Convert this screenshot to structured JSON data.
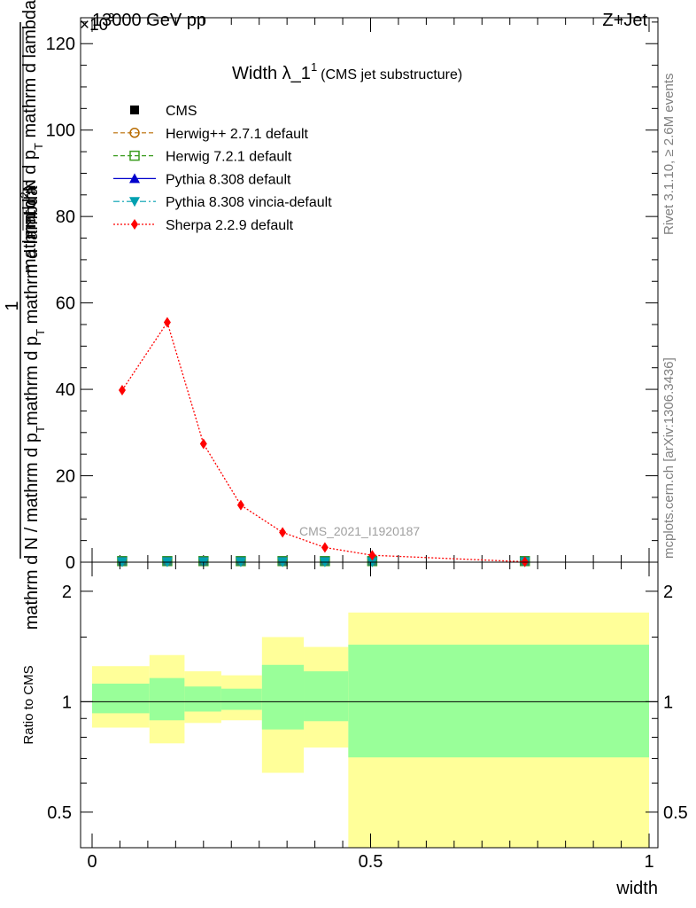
{
  "header": {
    "left": "13000 GeV pp",
    "right": "Z+Jet",
    "exponent": "×10",
    "exponent_power": "3"
  },
  "side_text": {
    "rivet": "Rivet 3.1.10, ≥ 2.6M events",
    "mcplots": "mcplots.cern.ch [arXiv:1306.3436]"
  },
  "chart_data": [
    {
      "type": "line",
      "title": "Width λ_1¹ (CMS jet substructure)",
      "title_main": "Width λ_1",
      "title_sup": "1",
      "title_note": "(CMS jet substructure)",
      "watermark": "CMS_2021_I1920187",
      "ylabel_numerator": "1",
      "ylabel_denominator": "mathrm d N / mathrm d p_T mathrm d p_T mathrm d lambda",
      "ylabel_line1": "mathrm d²N",
      "ylabel_line2": "mathrm d p_T mathrm d lambda",
      "ylabel_parts": {
        "top_num": "mathrm d",
        "top_sup": "2",
        "top_num_end": "N",
        "bottom": "mathrm d N / mathrm d p",
        "bottom_sub": "T",
        "bottom_mid": "mathrm d p",
        "bottom_sub2": "T",
        "bottom_end": " mathrm d lambda"
      },
      "xlim": [
        0,
        1
      ],
      "ylim": [
        0,
        126
      ],
      "y_scale_exponent": 3,
      "y_ticks": [
        0,
        20,
        40,
        60,
        80,
        100,
        120
      ],
      "grid": false,
      "legend_position": "top-left",
      "legend": [
        {
          "name": "CMS",
          "color": "#000000",
          "marker": "square-filled",
          "dash": "none"
        },
        {
          "name": "Herwig++ 2.7.1 default",
          "color": "#b86b00",
          "marker": "circle-open",
          "dash": "dashed"
        },
        {
          "name": "Herwig 7.2.1 default",
          "color": "#3a9c1f",
          "marker": "square-open",
          "dash": "dashed"
        },
        {
          "name": "Pythia 8.308 default",
          "color": "#0000cc",
          "marker": "triangle-up",
          "dash": "solid"
        },
        {
          "name": "Pythia 8.308 vincia-default",
          "color": "#00a0b0",
          "marker": "triangle-down",
          "dash": "dashdot"
        },
        {
          "name": "Sherpa 2.2.9 default",
          "color": "#ff0000",
          "marker": "diamond",
          "dash": "dotted"
        }
      ],
      "series": [
        {
          "name": "Sherpa 2.2.9 default",
          "color": "#ff0000",
          "x": [
            0.054,
            0.135,
            0.2,
            0.267,
            0.342,
            0.418,
            0.503,
            0.777
          ],
          "values": [
            39.8,
            55.5,
            27.4,
            13.2,
            6.9,
            3.4,
            1.6,
            0.1
          ]
        },
        {
          "name": "CMS",
          "color": "#000000",
          "x": [
            0.054,
            0.135,
            0.2,
            0.267,
            0.342,
            0.418,
            0.503,
            0.777
          ],
          "values": [
            0.05,
            0.05,
            0.05,
            0.05,
            0.05,
            0.05,
            0.05,
            0.05
          ]
        }
      ]
    },
    {
      "type": "area",
      "ylabel": "Ratio to CMS",
      "xlabel": "width",
      "xlim": [
        0,
        1
      ],
      "ylim": [
        0.4,
        2.4
      ],
      "log_y": true,
      "y_ticks": [
        0.5,
        1,
        2
      ],
      "y_tick_labels": [
        "0.5",
        "1",
        "2"
      ],
      "x_ticks": [
        0,
        0.5,
        1
      ],
      "x_tick_labels": [
        "0",
        "0.5",
        "1"
      ],
      "reference_line": 1,
      "bins": [
        {
          "x": [
            0.0,
            0.103
          ],
          "stat": [
            0.93,
            1.12
          ],
          "total": [
            0.85,
            1.25
          ]
        },
        {
          "x": [
            0.103,
            0.166
          ],
          "stat": [
            0.89,
            1.16
          ],
          "total": [
            0.77,
            1.34
          ]
        },
        {
          "x": [
            0.166,
            0.232
          ],
          "stat": [
            0.94,
            1.1
          ],
          "total": [
            0.875,
            1.21
          ]
        },
        {
          "x": [
            0.232,
            0.305
          ],
          "stat": [
            0.95,
            1.085
          ],
          "total": [
            0.89,
            1.18
          ]
        },
        {
          "x": [
            0.305,
            0.38
          ],
          "stat": [
            0.84,
            1.26
          ],
          "total": [
            0.64,
            1.5
          ]
        },
        {
          "x": [
            0.38,
            0.46
          ],
          "stat": [
            0.885,
            1.21
          ],
          "total": [
            0.75,
            1.41
          ]
        },
        {
          "x": [
            0.46,
            1.0
          ],
          "stat": [
            0.705,
            1.43
          ],
          "total": [
            0.37,
            1.75
          ]
        }
      ],
      "colors": {
        "stat": "#99ff99",
        "total": "#ffff99"
      }
    }
  ]
}
